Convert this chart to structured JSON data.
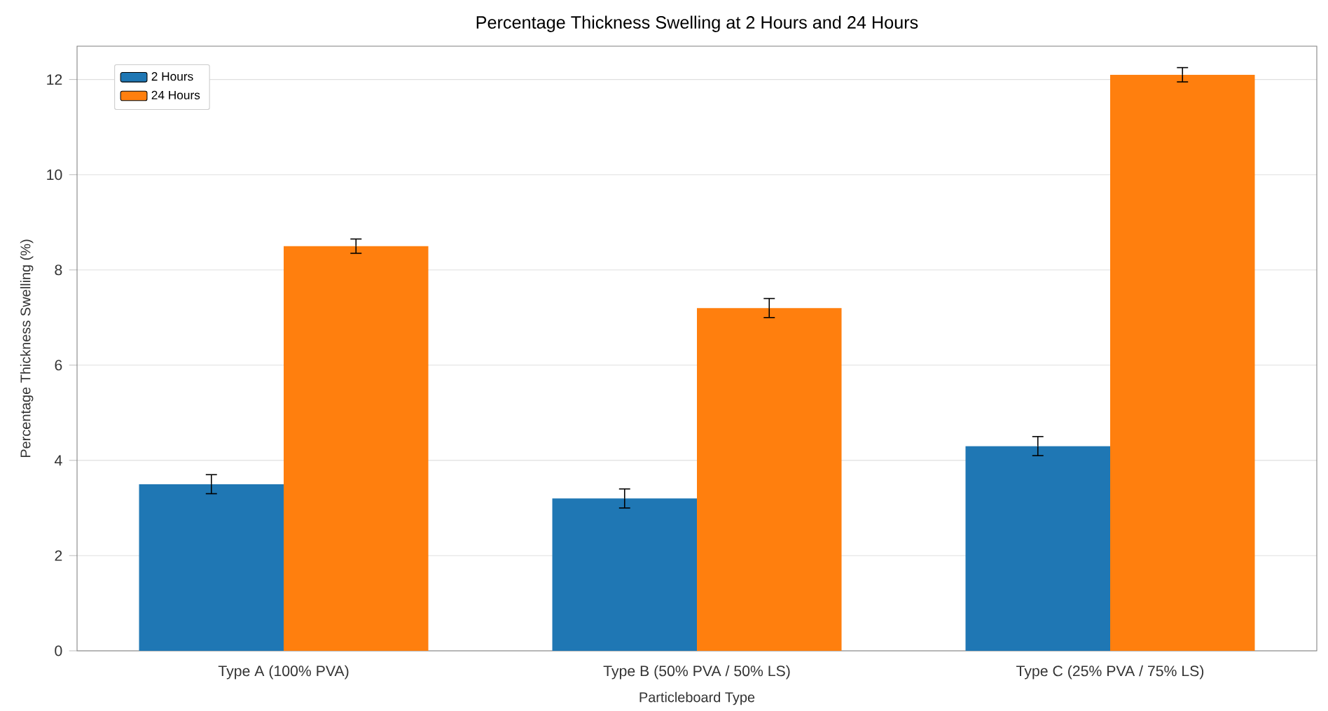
{
  "chart_data": {
    "type": "bar",
    "title": "Percentage Thickness Swelling at 2 Hours and 24 Hours",
    "xlabel": "Particleboard Type",
    "ylabel": "Percentage Thickness Swelling (%)",
    "categories": [
      "Type A (100% PVA)",
      "Type B (50% PVA / 50% LS)",
      "Type C (25% PVA / 75% LS)"
    ],
    "series": [
      {
        "name": "2 Hours",
        "color": "#1f77b4",
        "values": [
          3.5,
          3.2,
          4.3
        ],
        "errors": [
          0.2,
          0.2,
          0.2
        ]
      },
      {
        "name": "24 Hours",
        "color": "#ff7f0e",
        "values": [
          8.5,
          7.2,
          12.1
        ],
        "errors": [
          0.15,
          0.2,
          0.15
        ]
      }
    ],
    "ylim": [
      0,
      12.7
    ],
    "yticks": [
      0,
      2,
      4,
      6,
      8,
      10,
      12
    ],
    "grid": "y",
    "legend": "top left"
  }
}
